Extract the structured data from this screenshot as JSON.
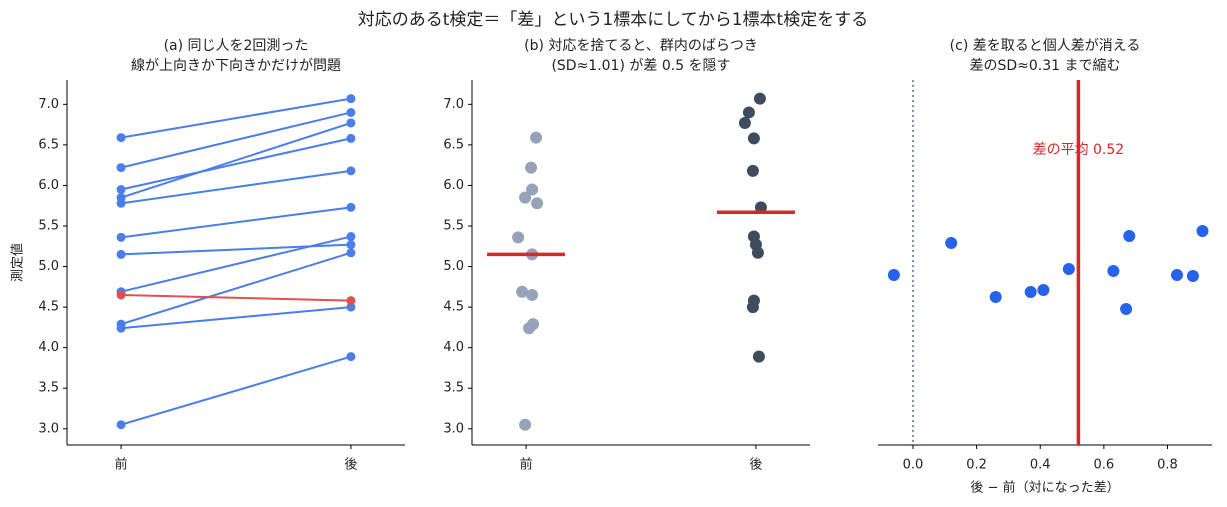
{
  "title": "対応のあるt検定＝「差」という1標本にしてから1標本t検定をする",
  "chart_data": [
    {
      "type": "paired",
      "title": [
        "(a) 同じ人を2回測った",
        "線が上向きか下向きかだけが問題"
      ],
      "ylabel": "測定値",
      "categories": [
        "前",
        "後"
      ],
      "before": [
        6.59,
        6.22,
        5.95,
        5.85,
        5.78,
        5.36,
        5.15,
        4.69,
        4.29,
        4.24,
        4.65,
        3.05
      ],
      "after": [
        7.07,
        6.9,
        6.58,
        6.77,
        6.18,
        5.73,
        5.27,
        5.37,
        5.17,
        4.5,
        4.58,
        3.89
      ],
      "color": "#4a7ee8",
      "down_color": "#e05050",
      "ylim": [
        2.8,
        7.3
      ],
      "yticks": [
        {
          "value": 3,
          "label": "3.0"
        },
        3.5,
        {
          "value": 4,
          "label": "4.0"
        },
        4.5,
        {
          "value": 5,
          "label": "5.0"
        },
        5.5,
        {
          "value": 6,
          "label": "6.0"
        },
        6.5,
        {
          "value": 7,
          "label": "7.0"
        }
      ]
    },
    {
      "type": "strip",
      "title": [
        "(b) 対応を捨てると、群内のばらつき",
        "(SD≈1.01) が差 0.5 を隠す"
      ],
      "categories": [
        "前",
        "後"
      ],
      "series": [
        {
          "color": "#94a3b8",
          "values": [
            6.59,
            6.22,
            5.95,
            5.85,
            5.78,
            5.36,
            5.15,
            4.69,
            4.29,
            4.24,
            4.65,
            3.05
          ]
        },
        {
          "color": "#3f4c5e",
          "values": [
            7.07,
            6.9,
            6.58,
            6.77,
            6.18,
            5.73,
            5.27,
            5.37,
            5.17,
            4.5,
            4.58,
            3.89
          ]
        }
      ],
      "means": [
        5.15,
        5.67
      ],
      "mean_color": "#d62828",
      "ylim": [
        2.8,
        7.3
      ],
      "yticks": [
        {
          "value": 3,
          "label": "3.0"
        },
        3.5,
        {
          "value": 4,
          "label": "4.0"
        },
        4.5,
        {
          "value": 5,
          "label": "5.0"
        },
        5.5,
        {
          "value": 6,
          "label": "6.0"
        },
        6.5,
        {
          "value": 7,
          "label": "7.0"
        }
      ]
    },
    {
      "type": "diff",
      "title": [
        "(c) 差を取ると個人差が消える",
        "差のSD≈0.31 まで縮む"
      ],
      "xlabel": "後 − 前（対になった差）",
      "values": [
        0.49,
        0.68,
        0.63,
        0.91,
        0.41,
        0.37,
        0.12,
        0.67,
        0.88,
        0.26,
        -0.06,
        0.83
      ],
      "color": "#2563eb",
      "mean": 0.52,
      "mean_color": "#d62828",
      "annotation": "差の平均 0.52",
      "reference_line": 0,
      "reference_color": "#7f8fb5",
      "xlim": [
        -0.11,
        0.94
      ],
      "xticks": [
        {
          "value": 0,
          "label": "0.0"
        },
        0.2,
        0.4,
        0.6,
        0.8
      ]
    }
  ]
}
